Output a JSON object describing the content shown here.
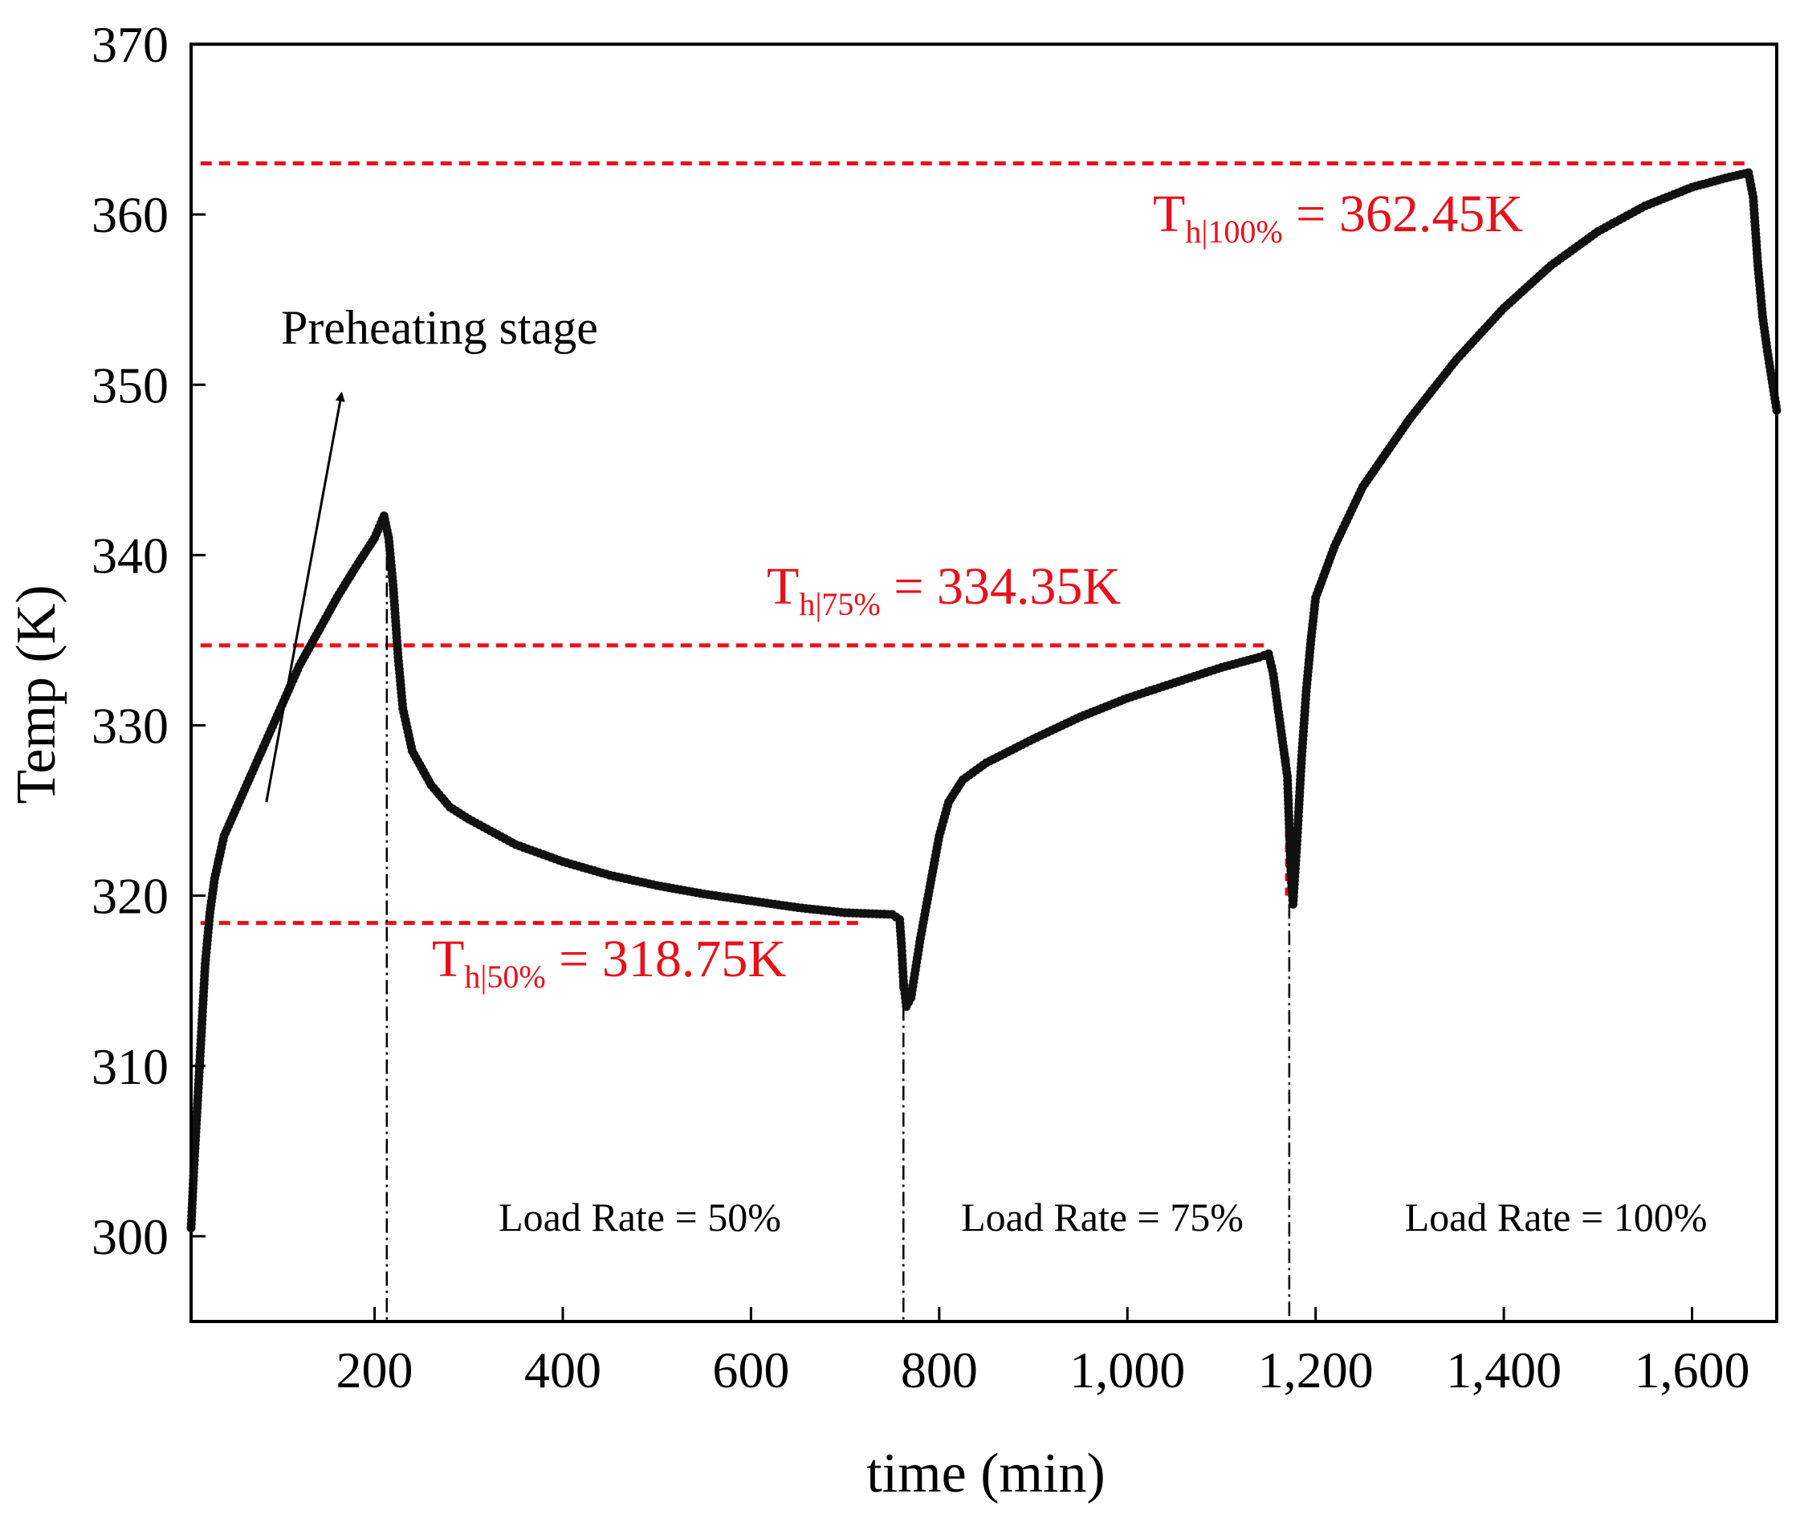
{
  "chart_data": {
    "type": "scatter",
    "xlabel": "time (min)",
    "ylabel": "Temp (K)",
    "xlim": [
      5,
      1690
    ],
    "ylim": [
      295,
      370
    ],
    "x_ticks": [
      200,
      400,
      600,
      800,
      1000,
      1200,
      1400,
      1600
    ],
    "x_tick_labels": [
      "200",
      "400",
      "600",
      "800",
      "1,000",
      "1,200",
      "1,400",
      "1,600"
    ],
    "y_ticks": [
      300,
      310,
      320,
      330,
      340,
      350,
      360,
      370
    ],
    "y_tick_labels": [
      "300",
      "310",
      "320",
      "330",
      "340",
      "350",
      "360",
      "370"
    ],
    "grid": false,
    "series": [
      {
        "color": "#111111",
        "marker": "circle",
        "points": [
          [
            5,
            300.5
          ],
          [
            8,
            304
          ],
          [
            12,
            308
          ],
          [
            16,
            312
          ],
          [
            20,
            316
          ],
          [
            25,
            319
          ],
          [
            30,
            321
          ],
          [
            40,
            323.5
          ],
          [
            60,
            326
          ],
          [
            80,
            328.5
          ],
          [
            100,
            331
          ],
          [
            120,
            333.5
          ],
          [
            140,
            335.5
          ],
          [
            160,
            337.5
          ],
          [
            180,
            339.3
          ],
          [
            200,
            341
          ],
          [
            210,
            342.3
          ],
          [
            215,
            341
          ],
          [
            220,
            338
          ],
          [
            225,
            334
          ],
          [
            230,
            331
          ],
          [
            240,
            328.5
          ],
          [
            260,
            326.5
          ],
          [
            280,
            325.2
          ],
          [
            300,
            324.5
          ],
          [
            350,
            323
          ],
          [
            400,
            322
          ],
          [
            450,
            321.2
          ],
          [
            500,
            320.6
          ],
          [
            550,
            320.1
          ],
          [
            600,
            319.7
          ],
          [
            650,
            319.3
          ],
          [
            700,
            319
          ],
          [
            750,
            318.9
          ],
          [
            758,
            318.6
          ],
          [
            760,
            317
          ],
          [
            762,
            315
          ],
          [
            765,
            313.5
          ],
          [
            770,
            314
          ],
          [
            780,
            317.5
          ],
          [
            790,
            320.5
          ],
          [
            800,
            323.5
          ],
          [
            810,
            325.5
          ],
          [
            825,
            326.8
          ],
          [
            850,
            327.8
          ],
          [
            900,
            329.2
          ],
          [
            950,
            330.5
          ],
          [
            1000,
            331.6
          ],
          [
            1050,
            332.5
          ],
          [
            1100,
            333.4
          ],
          [
            1140,
            334
          ],
          [
            1150,
            334.2
          ],
          [
            1155,
            333
          ],
          [
            1160,
            331
          ],
          [
            1165,
            329
          ],
          [
            1170,
            327
          ],
          [
            1172,
            324
          ],
          [
            1174,
            321
          ],
          [
            1176,
            319.5
          ],
          [
            1180,
            323
          ],
          [
            1185,
            328
          ],
          [
            1190,
            332
          ],
          [
            1195,
            335
          ],
          [
            1200,
            337.5
          ],
          [
            1220,
            340.5
          ],
          [
            1250,
            344
          ],
          [
            1300,
            348
          ],
          [
            1350,
            351.5
          ],
          [
            1400,
            354.5
          ],
          [
            1450,
            357
          ],
          [
            1500,
            359
          ],
          [
            1550,
            360.5
          ],
          [
            1600,
            361.6
          ],
          [
            1640,
            362.2
          ],
          [
            1660,
            362.45
          ],
          [
            1665,
            361
          ],
          [
            1670,
            357
          ],
          [
            1675,
            354
          ],
          [
            1680,
            352
          ],
          [
            1690,
            348.5
          ]
        ]
      }
    ],
    "reference_lines": [
      {
        "y": 363,
        "x_range": [
          15,
          1660
        ],
        "color": "#e8101a",
        "style": "dashed"
      },
      {
        "y": 334.7,
        "x_range": [
          15,
          1145
        ],
        "color": "#e8101a",
        "style": "dashed"
      },
      {
        "y": 318.4,
        "x_range": [
          15,
          715
        ],
        "color": "#e8101a",
        "style": "dashed"
      }
    ],
    "drop_segments": [
      {
        "x": 760,
        "y_range": [
          314.5,
          318.6
        ],
        "color": "#e8101a"
      },
      {
        "x": 1170,
        "y_range": [
          320,
          328.5
        ],
        "color": "#e8101a"
      }
    ],
    "vertical_markers": [
      {
        "x": 213,
        "y_from": 341.5
      },
      {
        "x": 762,
        "y_from": 313.5
      },
      {
        "x": 1172,
        "y_from": 319.5
      }
    ],
    "annotations": {
      "preheating": {
        "text": "Preheating stage",
        "arrow_from": [
          85,
          325.5
        ],
        "arrow_to": [
          165,
          349.5
        ]
      },
      "th100": {
        "prefix": "T",
        "sub": "h|100%",
        "rest": " = 362.45K"
      },
      "th75": {
        "prefix": "T",
        "sub": "h|75%",
        "rest": " = 334.35K"
      },
      "th50": {
        "prefix": "T",
        "sub": "h|50%",
        "rest": " = 318.75K"
      },
      "region_labels": [
        "Load Rate = 50%",
        "Load Rate = 75%",
        "Load Rate = 100%"
      ]
    }
  }
}
